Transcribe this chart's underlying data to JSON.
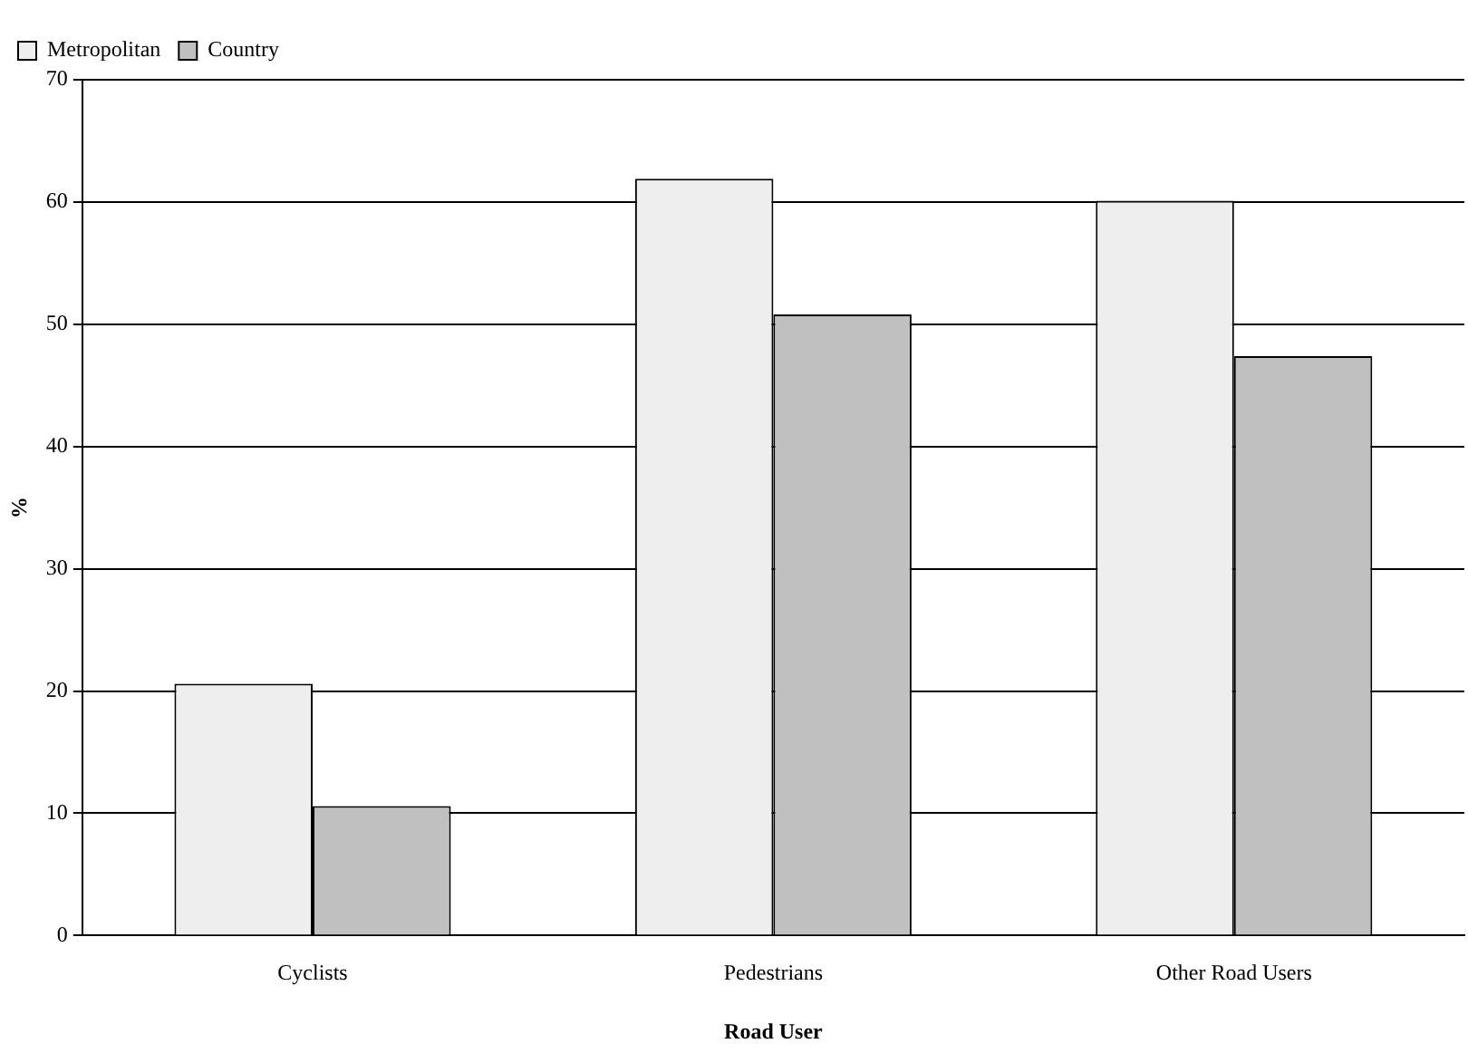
{
  "chart_data": {
    "type": "bar",
    "xlabel": "Road User",
    "ylabel": "%",
    "categories": [
      "Cyclists",
      "Pedestrians",
      "Other Road Users"
    ],
    "series": [
      {
        "name": "Metropolitan",
        "color": "#eeeeee",
        "values": [
          20.6,
          61.9,
          60.1
        ]
      },
      {
        "name": "Country",
        "color": "#c0c0c0",
        "values": [
          10.6,
          50.8,
          47.4
        ]
      }
    ],
    "ylim": [
      0,
      70
    ],
    "yticks": [
      0,
      10,
      20,
      30,
      40,
      50,
      60,
      70
    ],
    "grid": "y",
    "legend": "top left"
  }
}
